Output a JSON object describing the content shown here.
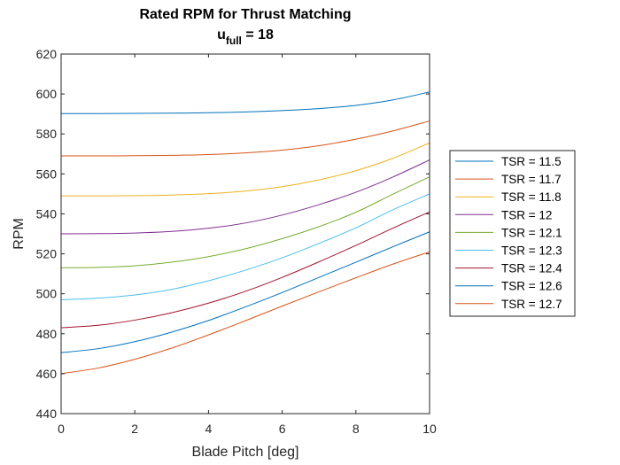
{
  "chart_data": {
    "type": "line",
    "title_line1": "Rated RPM for Thrust Matching",
    "title_line2_main": "u",
    "title_line2_sub": "full",
    "title_line2_rest": " = 18",
    "xlabel": "Blade Pitch [deg]",
    "ylabel": "RPM",
    "xlim": [
      0,
      10
    ],
    "ylim": [
      440,
      620
    ],
    "xticks": [
      "0",
      "2",
      "4",
      "6",
      "8",
      "10"
    ],
    "yticks": [
      "440",
      "460",
      "480",
      "500",
      "520",
      "540",
      "560",
      "580",
      "600",
      "620"
    ],
    "grid": false,
    "legend_position": "outside-right",
    "x": [
      0,
      1,
      2,
      3,
      4,
      5,
      6,
      7,
      8,
      9,
      10
    ],
    "series": [
      {
        "name": "TSR = 11.5",
        "color": "#0072BD",
        "values": [
          590.2,
          590.2,
          590.3,
          590.4,
          590.6,
          591.0,
          591.7,
          592.7,
          594.3,
          597.0,
          601.0
        ]
      },
      {
        "name": "TSR = 11.7",
        "color": "#D95319",
        "values": [
          569.0,
          569.0,
          569.1,
          569.3,
          569.7,
          570.5,
          571.9,
          574.1,
          577.4,
          581.5,
          586.5
        ]
      },
      {
        "name": "TSR = 11.8",
        "color": "#EDB120",
        "values": [
          549.0,
          549.0,
          549.1,
          549.4,
          550.1,
          551.4,
          553.6,
          557.0,
          561.6,
          567.8,
          575.5
        ]
      },
      {
        "name": "TSR = 12",
        "color": "#7E2F8E",
        "values": [
          530.0,
          530.1,
          530.4,
          531.2,
          532.8,
          535.4,
          539.4,
          544.6,
          550.8,
          558.4,
          567.0
        ]
      },
      {
        "name": "TSR = 12.1",
        "color": "#77AC30",
        "values": [
          513.0,
          513.2,
          514.0,
          515.8,
          518.6,
          522.5,
          527.6,
          533.6,
          540.8,
          549.8,
          558.5
        ]
      },
      {
        "name": "TSR = 12.3",
        "color": "#4DBEEE",
        "values": [
          497.0,
          497.8,
          499.4,
          502.2,
          506.5,
          511.8,
          518.0,
          525.2,
          533.0,
          542.0,
          550.0
        ]
      },
      {
        "name": "TSR = 12.4",
        "color": "#A2142F",
        "values": [
          483.0,
          484.2,
          486.8,
          490.5,
          495.3,
          501.2,
          508.2,
          516.0,
          524.2,
          532.8,
          541.0
        ]
      },
      {
        "name": "TSR = 12.6",
        "color": "#0072BD",
        "values": [
          470.5,
          472.5,
          476.0,
          480.8,
          486.6,
          493.4,
          500.6,
          508.2,
          515.8,
          523.5,
          531.0
        ]
      },
      {
        "name": "TSR = 12.7",
        "color": "#D95319",
        "values": [
          460.0,
          462.8,
          467.2,
          472.8,
          479.4,
          486.5,
          493.8,
          501.0,
          508.0,
          514.8,
          521.0
        ]
      }
    ]
  }
}
